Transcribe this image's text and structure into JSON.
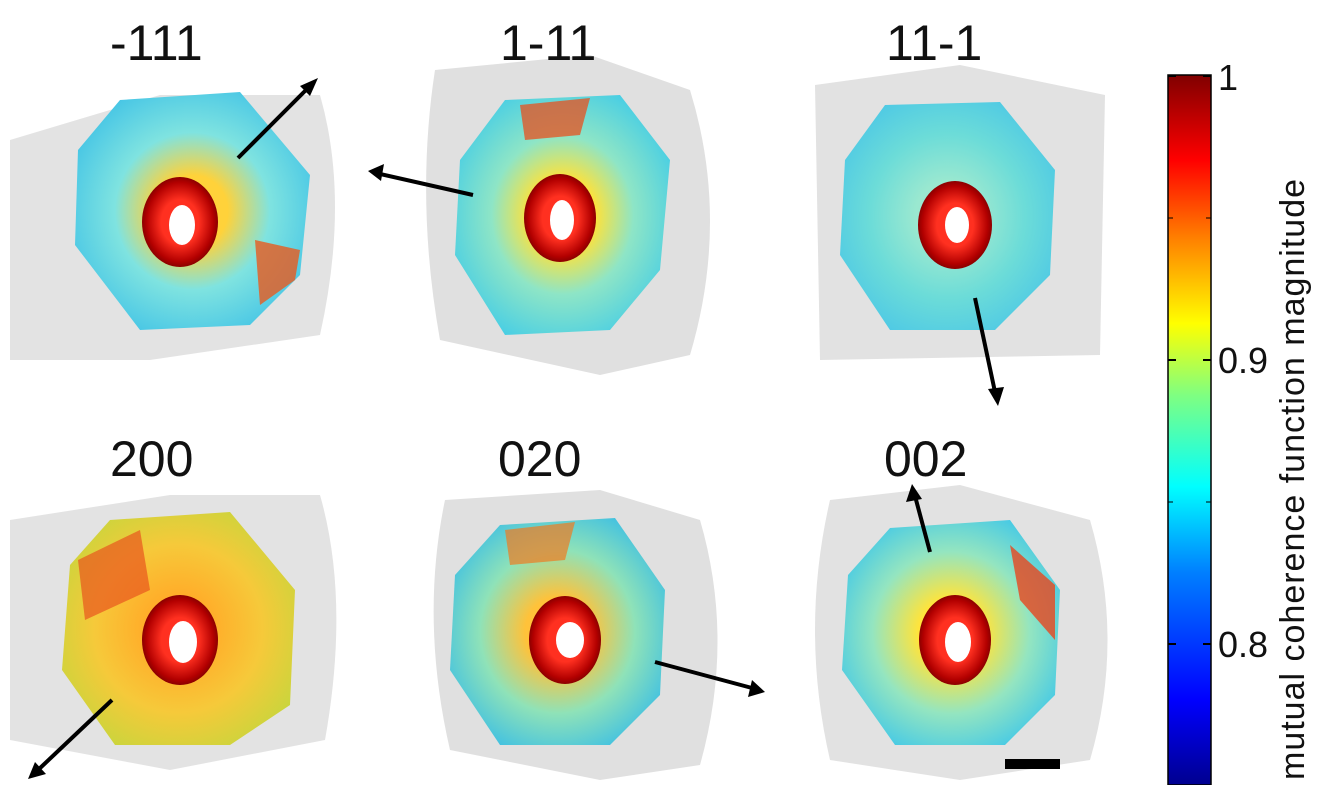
{
  "panels": [
    {
      "label": "-111"
    },
    {
      "label": "1-11"
    },
    {
      "label": "11-1"
    },
    {
      "label": "200"
    },
    {
      "label": "020"
    },
    {
      "label": "002"
    }
  ],
  "colorbar": {
    "title": "mutual coherence function magnitude",
    "ticks": [
      "1",
      "0.9",
      "0.8"
    ],
    "tick_values": [
      1,
      0.9,
      0.8
    ],
    "range": [
      0.75,
      1
    ],
    "colormap": "jet",
    "colors": [
      "#00008f",
      "#0000ff",
      "#0080ff",
      "#00ffff",
      "#80ff80",
      "#ffff00",
      "#ff8000",
      "#ff0000",
      "#800000"
    ]
  },
  "scale_bar": {
    "color": "#000000"
  }
}
